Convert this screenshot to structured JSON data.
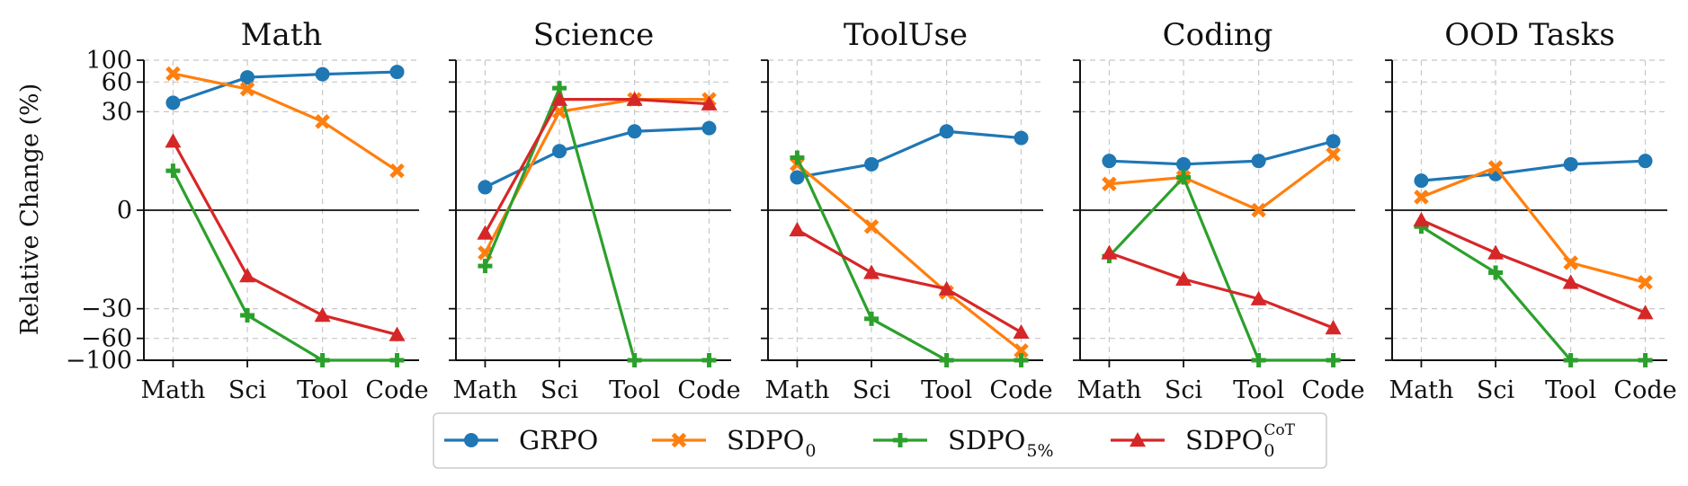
{
  "chart_data": {
    "type": "line",
    "ylabel": "Relative Change (%)",
    "yticks": [
      100,
      60,
      30,
      0,
      -30,
      -60,
      -100
    ],
    "ylim": [
      -100,
      100
    ],
    "scale": "symlog",
    "grid": true,
    "legend_placement": "bottom-center",
    "categories": [
      "Math",
      "Sci",
      "Tool",
      "Code"
    ],
    "series_styles": [
      {
        "name": "GRPO",
        "color": "#1f77b4",
        "marker": "circle"
      },
      {
        "name": "SDPO",
        "sub": "0",
        "sup": "",
        "color": "#ff7f0e",
        "marker": "x"
      },
      {
        "name": "SDPO",
        "sub": "5%",
        "sup": "",
        "color": "#2ca02c",
        "marker": "plus"
      },
      {
        "name": "SDPO",
        "sub": "0",
        "sup": "CoT",
        "color": "#d62728",
        "marker": "triangle"
      }
    ],
    "panels": [
      {
        "title": "Math",
        "series": [
          [
            37,
            67,
            72,
            76
          ],
          [
            73,
            51,
            27,
            12
          ],
          [
            12,
            -35,
            -100,
            -100
          ],
          [
            21,
            -20,
            -35,
            -55
          ]
        ]
      },
      {
        "title": "Science",
        "series": [
          [
            7,
            18,
            24,
            25
          ],
          [
            -13,
            30,
            40,
            40
          ],
          [
            -17,
            52,
            -100,
            -100
          ],
          [
            -7,
            40,
            40,
            36
          ]
        ]
      },
      {
        "title": "ToolUse",
        "series": [
          [
            10,
            14,
            24,
            22
          ],
          [
            14,
            -5,
            -25,
            -80
          ],
          [
            16,
            -38,
            -100,
            -100
          ],
          [
            -6,
            -19,
            -24,
            -52
          ]
        ]
      },
      {
        "title": "Coding",
        "series": [
          [
            15,
            14,
            15,
            21
          ],
          [
            8,
            10,
            0,
            17
          ],
          [
            -14,
            10,
            -100,
            -100
          ],
          [
            -13,
            -21,
            -27,
            -47
          ]
        ]
      },
      {
        "title": "OOD Tasks",
        "series": [
          [
            9,
            11,
            14,
            15
          ],
          [
            4,
            13,
            -16,
            -22
          ],
          [
            -5,
            -19,
            -100,
            -100
          ],
          [
            -3,
            -13,
            -22,
            -33
          ]
        ]
      }
    ]
  }
}
